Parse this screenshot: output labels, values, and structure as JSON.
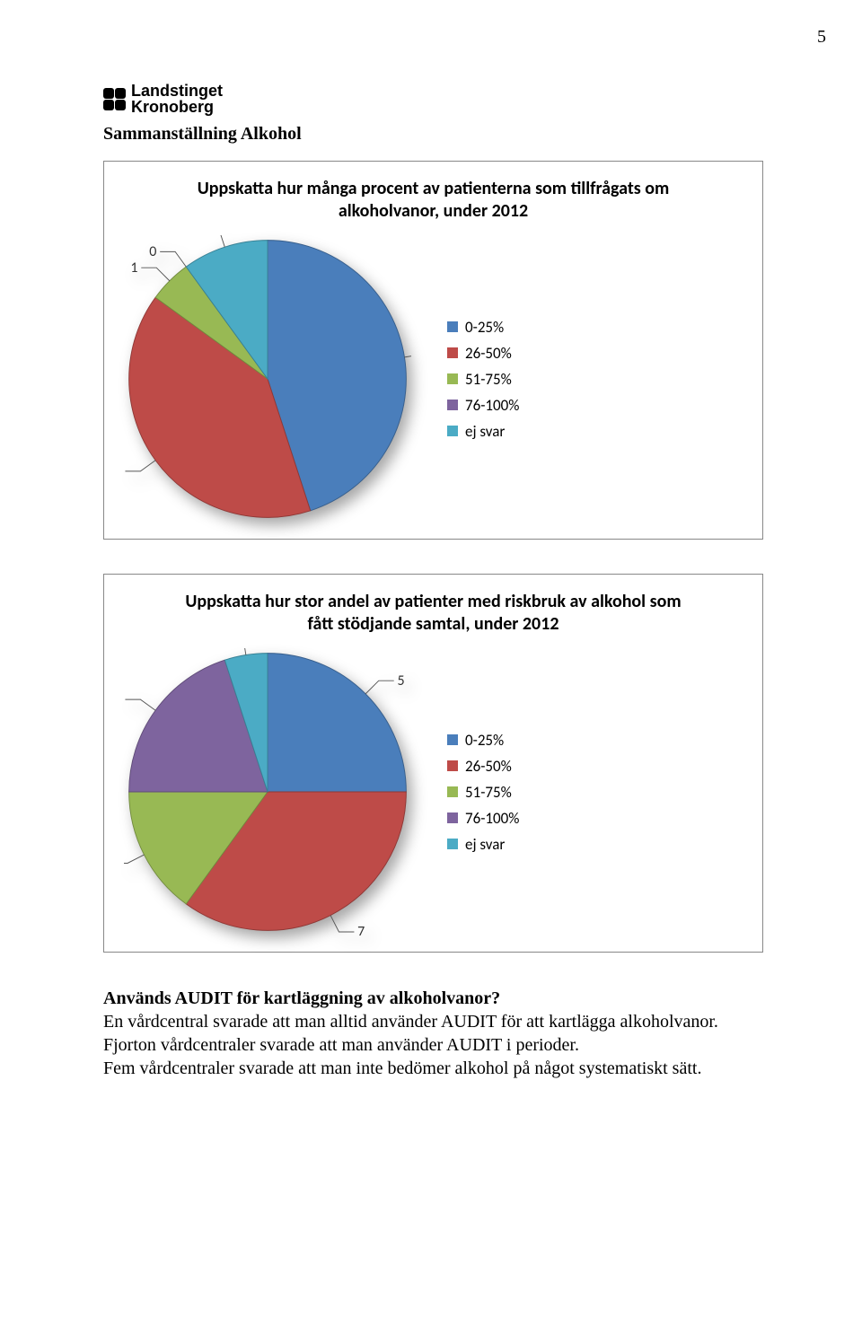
{
  "page_number": "5",
  "logo": {
    "line1": "Landstinget",
    "line2": "Kronoberg"
  },
  "section_title": "Sammanställning Alkohol",
  "chart1": {
    "type": "pie",
    "title": "Uppskatta hur många procent av patienterna som tillfrågats om alkoholvanor, under 2012",
    "categories": [
      "0-25%",
      "26-50%",
      "51-75%",
      "76-100%",
      "ej svar"
    ],
    "values": [
      9,
      8,
      1,
      0,
      2
    ],
    "colors": [
      "#4a7ebb",
      "#be4b48",
      "#98b954",
      "#7e649e",
      "#4babc5"
    ],
    "background_color": "#ffffff",
    "label_fontsize": 17,
    "title_fontsize": 20,
    "leader_color": "#555555",
    "shadow": true
  },
  "chart2": {
    "type": "pie",
    "title": "Uppskatta hur stor andel av patienter med riskbruk av alkohol som fått stödjande samtal, under  2012",
    "categories": [
      "0-25%",
      "26-50%",
      "51-75%",
      "76-100%",
      "ej svar"
    ],
    "values": [
      5,
      7,
      3,
      4,
      1
    ],
    "colors": [
      "#4a7ebb",
      "#be4b48",
      "#98b954",
      "#7e649e",
      "#4babc5"
    ],
    "background_color": "#ffffff",
    "label_fontsize": 17,
    "title_fontsize": 20,
    "leader_color": "#555555",
    "shadow": true
  },
  "body": {
    "question": "Används AUDIT för kartläggning av alkoholvanor?",
    "line1": "En vårdcentral svarade att man alltid använder AUDIT för att kartlägga alkoholvanor.",
    "line2": "Fjorton vårdcentraler svarade att man använder AUDIT i perioder.",
    "line3": "Fem vårdcentraler svarade att man inte bedömer alkohol på något systematiskt sätt."
  }
}
